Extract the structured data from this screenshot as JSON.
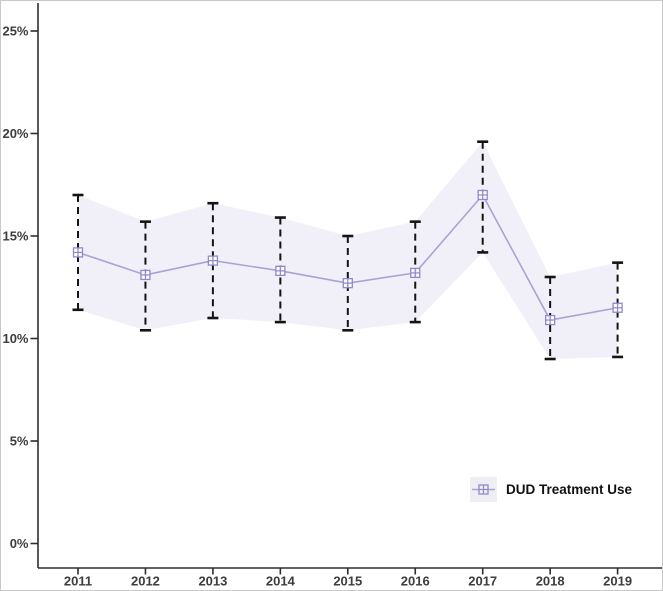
{
  "figure": {
    "legend": {
      "label": "DUD Treatment Use"
    }
  },
  "chart_data": {
    "type": "line",
    "title": "",
    "xlabel": "",
    "ylabel": "",
    "x": [
      "2011",
      "2012",
      "2013",
      "2014",
      "2015",
      "2016",
      "2017",
      "2018",
      "2019"
    ],
    "series": [
      {
        "name": "DUD Treatment Use",
        "values": [
          14.2,
          13.1,
          13.8,
          13.3,
          12.7,
          13.2,
          17.0,
          10.9,
          11.5
        ],
        "ci_lower": [
          11.4,
          10.4,
          11.0,
          10.8,
          10.4,
          10.8,
          14.2,
          9.0,
          9.1
        ],
        "ci_upper": [
          17.0,
          15.7,
          16.6,
          15.9,
          15.0,
          15.7,
          19.6,
          13.0,
          13.7
        ]
      }
    ],
    "yticks": [
      0,
      5,
      10,
      15,
      20,
      25
    ],
    "ytick_labels": [
      "0%",
      "5%",
      "10%",
      "15%",
      "20%",
      "25%"
    ],
    "ylim": [
      0,
      26.3
    ],
    "grid": false,
    "legend_position": "bottom-right",
    "marker": "square-plus",
    "error_bar_style": "dashed-with-caps",
    "colors": {
      "line": "#a8a3d6",
      "marker": "#8f89c8",
      "ribbon": "#f1f0f8",
      "error_bar": "#141414",
      "axis": "#2e2e2e",
      "tick_label": "#3d3d3d",
      "legend_text": "#111111",
      "legend_key_bg": "#efeef5",
      "background": "#ffffff"
    }
  }
}
